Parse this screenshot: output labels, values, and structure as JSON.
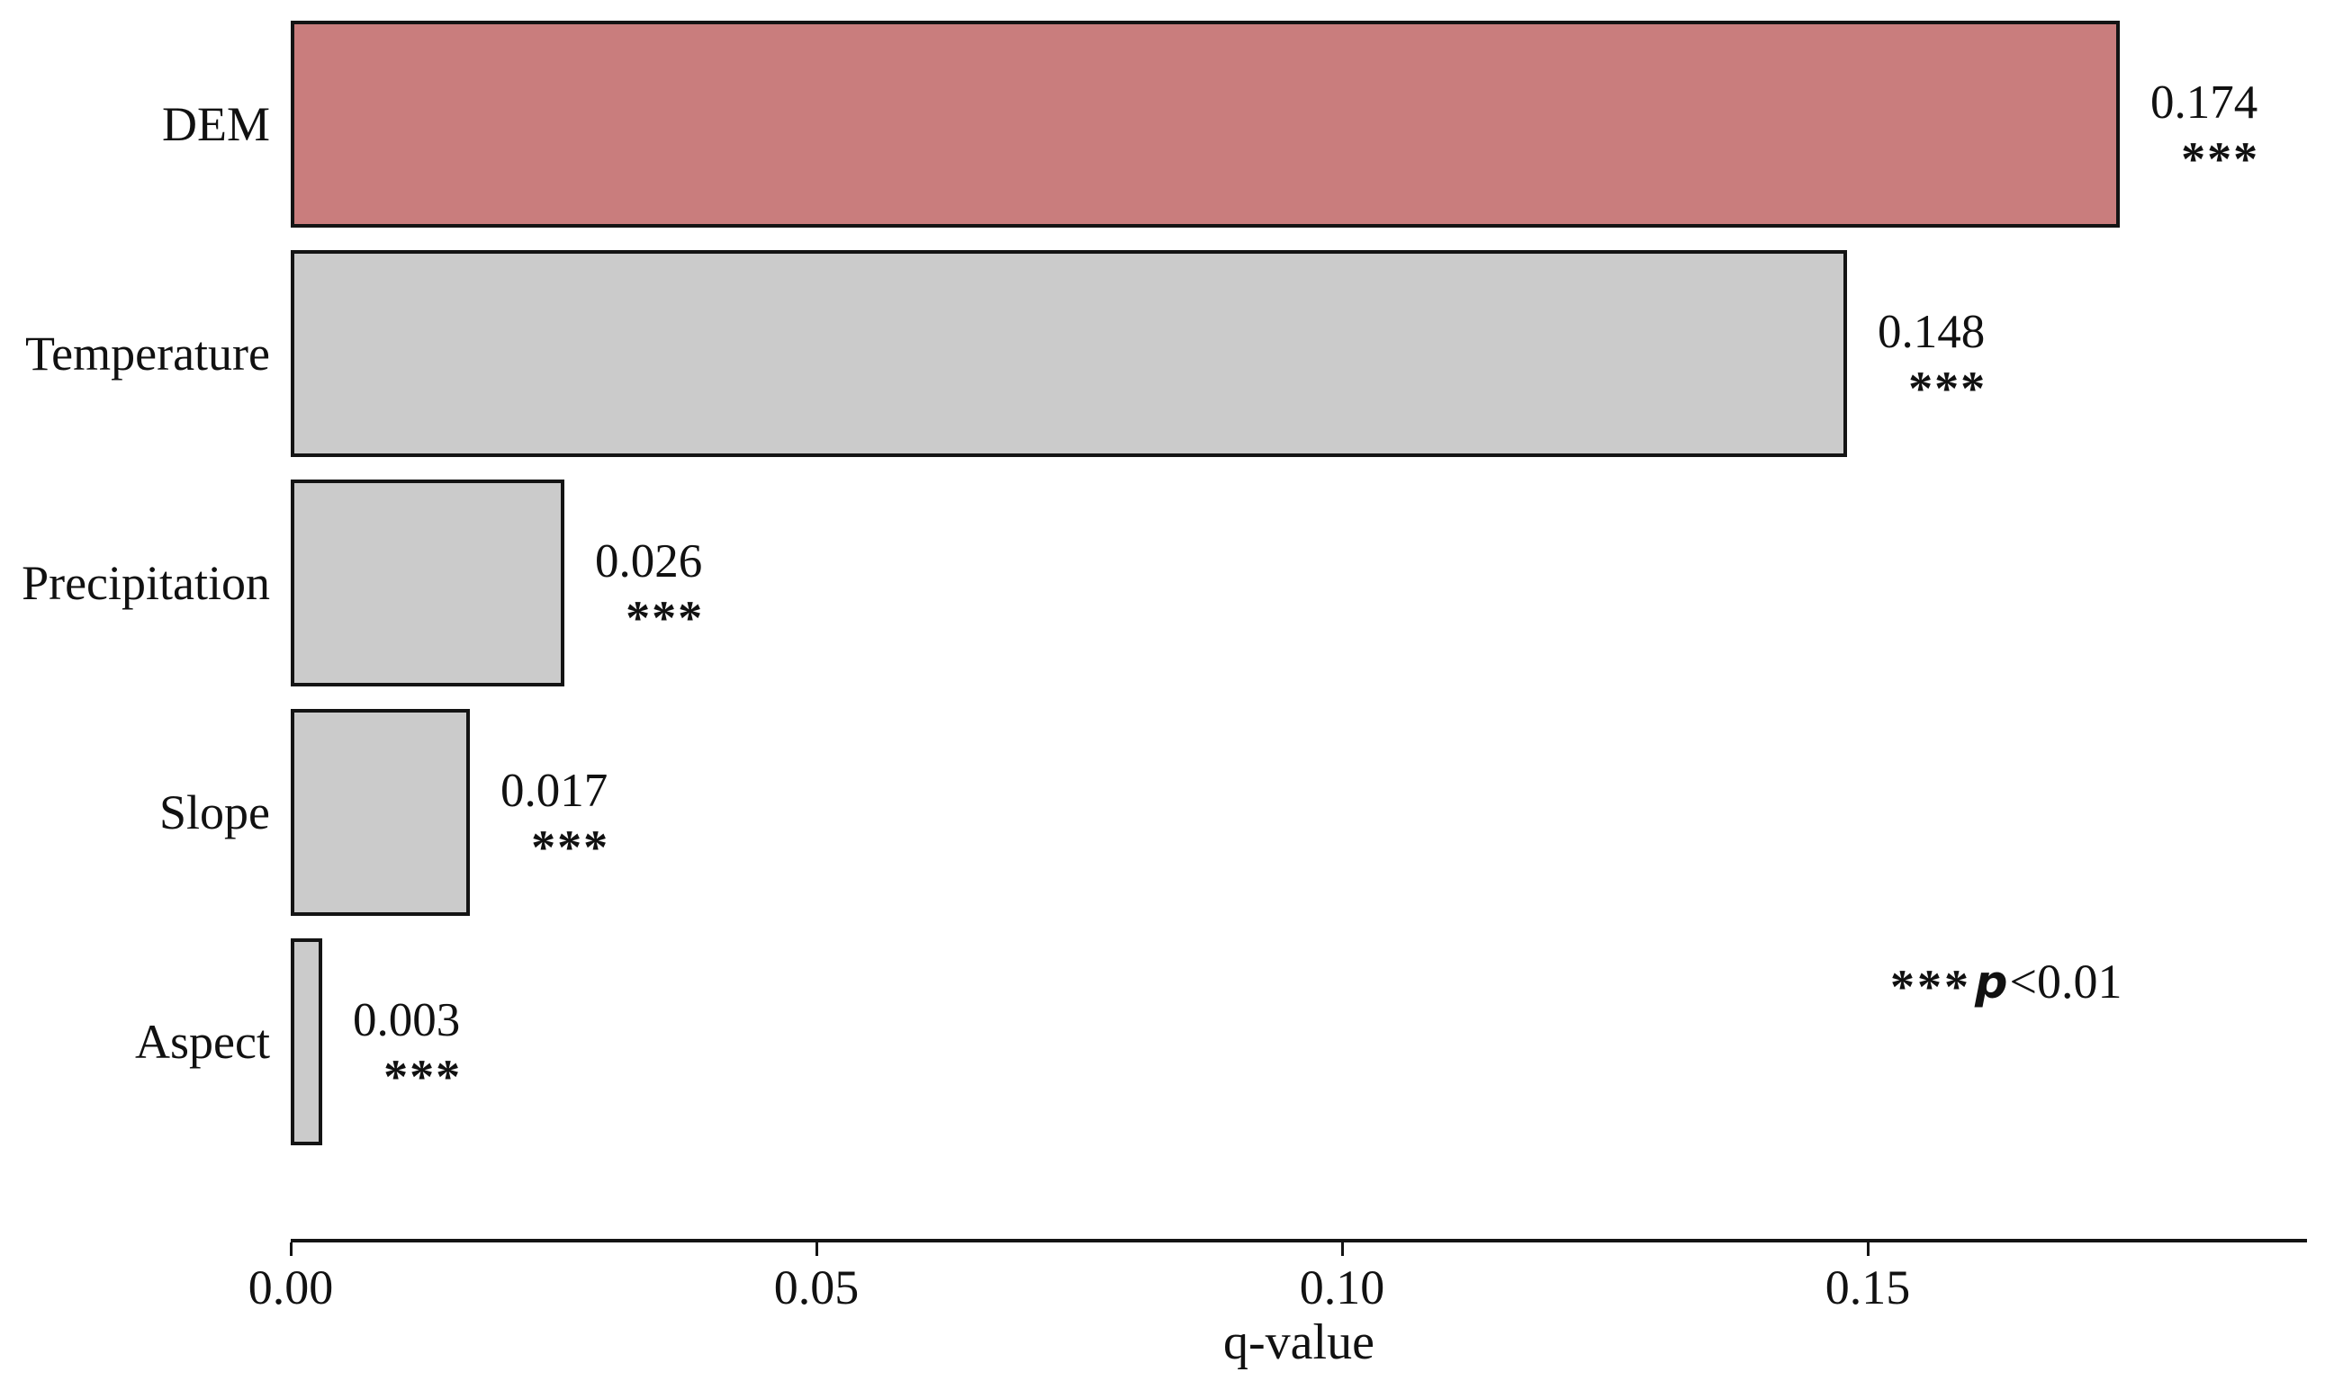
{
  "chart_data": {
    "type": "bar",
    "orientation": "horizontal",
    "title": "",
    "xlabel": "q-value",
    "ylabel": "",
    "categories": [
      "DEM",
      "Temperature",
      "Precipitation",
      "Slope",
      "Aspect"
    ],
    "values": [
      0.174,
      0.148,
      0.026,
      0.017,
      0.003
    ],
    "value_labels": [
      "0.174",
      "0.148",
      "0.026",
      "0.017",
      "0.003"
    ],
    "significance": [
      "***",
      "***",
      "***",
      "***",
      "***"
    ],
    "bar_colors": [
      "#c97d7d",
      "#cbcbcb",
      "#cbcbcb",
      "#cbcbcb",
      "#cbcbcb"
    ],
    "bar_border_color": "#141414",
    "highlight_color": "#c97d7d",
    "default_bar_color": "#cbcbcb",
    "x_ticks": [
      "0.00",
      "0.05",
      "0.10",
      "0.15"
    ],
    "x_tick_values": [
      0.0,
      0.05,
      0.1,
      0.15
    ],
    "xlim": [
      0,
      0.192
    ],
    "grid": false,
    "legend": false,
    "axis_color": "#141414"
  },
  "annotation": {
    "stars": "***",
    "p": "p",
    "rest": "<0.01",
    "full_text": "***p<0.01"
  }
}
